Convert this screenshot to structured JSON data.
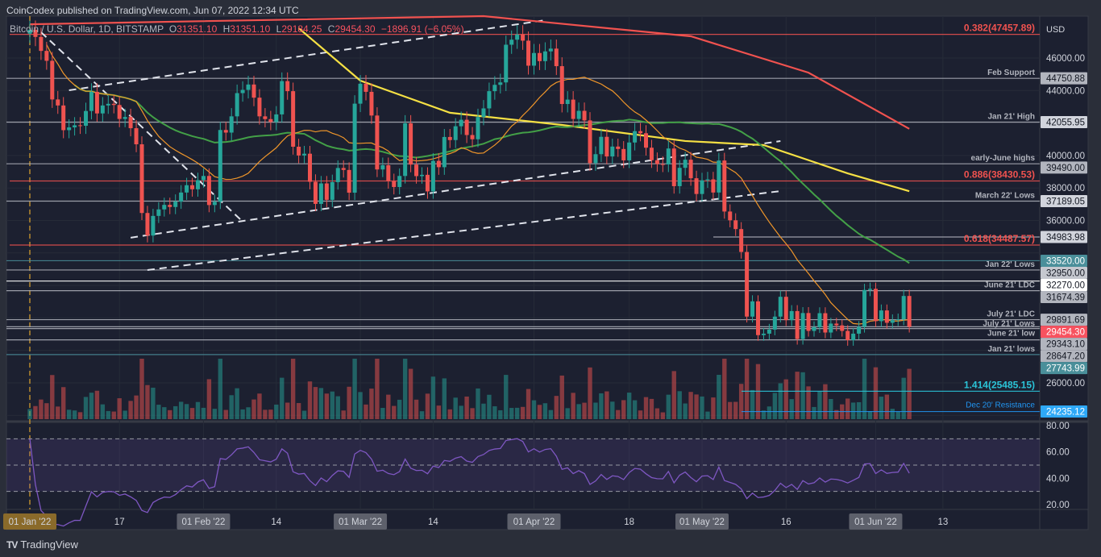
{
  "header": {
    "published": "CoinCodex published on TradingView.com, Jun 07, 2022 12:34 UTC"
  },
  "legend": {
    "symbol": "Bitcoin / U.S. Dollar, 1D, BITSTAMP",
    "open": "31351.10",
    "high": "31351.10",
    "low": "29184.25",
    "close": "29454.30",
    "change": "−1896.91 (−6.05%)"
  },
  "footer": {
    "brand": "TradingView"
  },
  "colors": {
    "up": "#26a69a",
    "down": "#ef5350",
    "ma20": "#f0962a",
    "ma50": "#43a047",
    "ma100": "#f5e044",
    "ma200": "#f0524f",
    "rsi": "#7e57c2",
    "background": "#1c2030"
  },
  "chart_data": {
    "type": "candlestick",
    "symbol": "BTCUSD",
    "interval": "1D",
    "currency": "USD",
    "start_date": "2022-01-01",
    "ylim": [
      23500,
      49000
    ],
    "price_ticks": [
      "46000.00",
      "44000.00",
      "40000.00",
      "38000.00",
      "36000.00",
      "26000.00"
    ],
    "time_ticks": [
      {
        "day": 0,
        "label": "01 Jan '22",
        "highlight": "cursor"
      },
      {
        "day": 16,
        "label": "17"
      },
      {
        "day": 31,
        "label": "01 Feb '22",
        "highlight": "month"
      },
      {
        "day": 44,
        "label": "14"
      },
      {
        "day": 59,
        "label": "01 Mar '22",
        "highlight": "month"
      },
      {
        "day": 72,
        "label": "14"
      },
      {
        "day": 90,
        "label": "01 Apr '22",
        "highlight": "month"
      },
      {
        "day": 107,
        "label": "18"
      },
      {
        "day": 120,
        "label": "01 May '22",
        "highlight": "month"
      },
      {
        "day": 135,
        "label": "16"
      },
      {
        "day": 151,
        "label": "01 Jun '22",
        "highlight": "month"
      },
      {
        "day": 163,
        "label": "13"
      }
    ],
    "closes": [
      47738,
      47300,
      46440,
      45830,
      43450,
      43080,
      41560,
      41730,
      41860,
      41830,
      42740,
      43920,
      42590,
      43080,
      43180,
      43110,
      42250,
      42370,
      41680,
      40690,
      36460,
      35070,
      36280,
      36680,
      36960,
      36830,
      37160,
      37720,
      38170,
      37920,
      38480,
      38740,
      36950,
      37150,
      41570,
      41410,
      42410,
      43840,
      44040,
      44370,
      43560,
      42410,
      42240,
      42060,
      42530,
      44580,
      43960,
      40540,
      40000,
      40110,
      38380,
      37020,
      38280,
      37270,
      38360,
      39230,
      39110,
      37710,
      43190,
      44420,
      43920,
      42460,
      39140,
      39400,
      38420,
      38060,
      38740,
      41980,
      39440,
      38730,
      38810,
      37790,
      39670,
      39280,
      41140,
      40950,
      41800,
      42200,
      41260,
      41000,
      42370,
      42900,
      43960,
      44350,
      44500,
      46820,
      47130,
      47450,
      47070,
      45530,
      46310,
      45810,
      46410,
      46580,
      45500,
      43170,
      43440,
      42250,
      42750,
      42160,
      39530,
      40080,
      41150,
      39940,
      40550,
      40400,
      39700,
      40800,
      41500,
      41370,
      40480,
      39710,
      39470,
      39450,
      40430,
      38110,
      39240,
      39740,
      38600,
      37630,
      38470,
      38530,
      37720,
      39690,
      36550,
      36010,
      35470,
      34060,
      30080,
      31020,
      28940,
      29030,
      29280,
      30080,
      31300,
      29860,
      30420,
      28700,
      30300,
      29200,
      29430,
      30290,
      29100,
      29650,
      29540,
      29200,
      28630,
      29030,
      29450,
      31720,
      31790,
      29800,
      30460,
      29700,
      29860,
      29910,
      31351,
      29454.3
    ],
    "ma100": [
      [
        48,
        47840
      ],
      [
        59,
        44610
      ],
      [
        75,
        42630
      ],
      [
        95,
        41880
      ],
      [
        117,
        40890
      ],
      [
        131,
        40640
      ],
      [
        146,
        38900
      ],
      [
        157,
        37800
      ]
    ],
    "ma200": [
      [
        0,
        48080
      ],
      [
        81,
        48580
      ],
      [
        118,
        47340
      ],
      [
        139,
        45100
      ],
      [
        157,
        41640
      ]
    ],
    "trendlines": [
      {
        "from": [
          7,
          44015
        ],
        "to": [
          92,
          48330
        ]
      },
      {
        "from": [
          18,
          34940
        ],
        "to": [
          134,
          40890
        ]
      },
      {
        "from": [
          21,
          32950
        ],
        "to": [
          134,
          37810
        ]
      },
      {
        "from": [
          2,
          47590
        ],
        "to": [
          38,
          35930
        ]
      }
    ],
    "levels": [
      {
        "value": 47457.89,
        "label": "0.382(47457.89)",
        "color": "#f0524f",
        "tag": ""
      },
      {
        "value": 44750.88,
        "label": "Feb Support",
        "color": "#b2b5be",
        "tag": "44750.88",
        "tagColor": "#b2b5be"
      },
      {
        "value": 42055.95,
        "label": "Jan 21' High",
        "color": "#b2b5be",
        "tag": "42055.95",
        "tagColor": "#d1d4dc"
      },
      {
        "value": 39490.0,
        "label": "early-June highs",
        "color": "#b2b5be",
        "tag": "39490.00",
        "tagColor": "#b2b5be"
      },
      {
        "value": 38430.53,
        "label": "0.886(38430.53)",
        "color": "#f0524f",
        "tag": ""
      },
      {
        "value": 37189.05,
        "label": "March 22' Lows",
        "color": "#b2b5be",
        "tag": "37189.05",
        "tagColor": "#d1d4dc"
      },
      {
        "value": 34983.98,
        "label": "",
        "color": "#b2b5be",
        "tag": "34983.98",
        "tagColor": "#d1d4dc"
      },
      {
        "value": 34487.57,
        "label": "0.618(34487.57)",
        "color": "#f0524f",
        "tag": ""
      },
      {
        "value": 33520.0,
        "label": "",
        "color": "#4a8f9a",
        "tag": "33520.00",
        "tagColor": "#4a8f9a"
      },
      {
        "value": 32950.0,
        "label": "Jan 22' Lows",
        "color": "#b2b5be",
        "tag": "32950.00",
        "tagColor": "#c5c8cf"
      },
      {
        "value": 32270.0,
        "label": "",
        "color": "#ffffff",
        "tag": "32270.00",
        "tagColor": "#ffffff"
      },
      {
        "value": 31674.39,
        "label": "June 21' LDC",
        "color": "#b2b5be",
        "tag": "31674.39",
        "tagColor": "#b2b5be"
      },
      {
        "value": 29891.69,
        "label": "July 21' LDC",
        "color": "#b2b5be",
        "tag": "29891.69",
        "tagColor": "#b2b5be"
      },
      {
        "value": 29454.3,
        "label": "July 21' Lows",
        "color": "#b2b5be",
        "tag": "29454.30",
        "tagColor": "#f7525f"
      },
      {
        "value": 29343.1,
        "label": "June 21' low",
        "color": "#b2b5be",
        "tag": "29343.10",
        "tagColor": "#b2b5be"
      },
      {
        "value": 28647.2,
        "label": "",
        "color": "#b2b5be",
        "tag": "28647.20",
        "tagColor": "#b2b5be"
      },
      {
        "value": 27743.99,
        "label": "Jan 21' lows",
        "color": "#4a8f9a",
        "tag": "27743.99",
        "tagColor": "#4a8f9a"
      },
      {
        "value": 25485.15,
        "label": "1.414(25485.15)",
        "color": "#2bc4d8",
        "tag": ""
      },
      {
        "value": 24235.12,
        "label": "Dec 20' Resistance",
        "color": "#2196f3",
        "tag": "24235.12",
        "tagColor": "#2ea8f7"
      }
    ],
    "rsi": {
      "period": 14,
      "ylim": [
        15,
        85
      ],
      "bands": [
        30,
        50,
        70
      ],
      "ticks": [
        "80.00",
        "60.00",
        "40.00",
        "20.00"
      ]
    }
  }
}
